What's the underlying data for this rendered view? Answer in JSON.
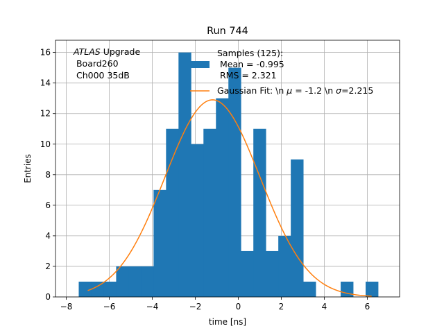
{
  "chart_data": {
    "type": "bar",
    "title": "Run 744",
    "xlabel": "time [ns]",
    "ylabel": "Entries",
    "xlim": [
      -8.5,
      7.5
    ],
    "ylim": [
      0,
      16.8
    ],
    "grid": true,
    "x_ticks": [
      -8,
      -6,
      -4,
      -2,
      0,
      2,
      4,
      6
    ],
    "x_tick_labels": [
      "−8",
      "−6",
      "−4",
      "−2",
      "0",
      "2",
      "4",
      "6"
    ],
    "y_ticks": [
      0,
      2,
      4,
      6,
      8,
      10,
      12,
      14,
      16
    ],
    "y_tick_labels": [
      "0",
      "2",
      "4",
      "6",
      "8",
      "10",
      "12",
      "14",
      "16"
    ],
    "annotation": {
      "italic": "ATLAS",
      "rest": " Upgrade",
      "lines": [
        " Board260",
        " Ch000 35dB"
      ]
    },
    "histogram": {
      "color": "#1f77b4",
      "bins": [
        {
          "left": -7.42,
          "right": -6.84,
          "count": 1
        },
        {
          "left": -6.84,
          "right": -6.26,
          "count": 1
        },
        {
          "left": -6.26,
          "right": -5.68,
          "count": 1
        },
        {
          "left": -5.68,
          "right": -5.1,
          "count": 2
        },
        {
          "left": -5.1,
          "right": -4.52,
          "count": 2
        },
        {
          "left": -4.52,
          "right": -3.94,
          "count": 2
        },
        {
          "left": -3.94,
          "right": -3.36,
          "count": 7
        },
        {
          "left": -3.36,
          "right": -2.78,
          "count": 11
        },
        {
          "left": -2.78,
          "right": -2.2,
          "count": 16
        },
        {
          "left": -2.2,
          "right": -1.62,
          "count": 10
        },
        {
          "left": -1.62,
          "right": -1.04,
          "count": 11
        },
        {
          "left": -1.04,
          "right": -0.46,
          "count": 13
        },
        {
          "left": -0.46,
          "right": 0.12,
          "count": 15
        },
        {
          "left": 0.12,
          "right": 0.7,
          "count": 3
        },
        {
          "left": 0.7,
          "right": 1.28,
          "count": 11
        },
        {
          "left": 1.28,
          "right": 1.86,
          "count": 3
        },
        {
          "left": 1.86,
          "right": 2.44,
          "count": 4
        },
        {
          "left": 2.44,
          "right": 3.02,
          "count": 9
        },
        {
          "left": 3.02,
          "right": 3.6,
          "count": 1
        },
        {
          "left": 3.6,
          "right": 4.18,
          "count": 0
        },
        {
          "left": 4.18,
          "right": 4.76,
          "count": 0
        },
        {
          "left": 4.76,
          "right": 5.34,
          "count": 1
        },
        {
          "left": 5.34,
          "right": 5.92,
          "count": 0
        },
        {
          "left": 5.92,
          "right": 6.5,
          "count": 1
        }
      ]
    },
    "fit": {
      "color": "#ff7f0e",
      "mu": -1.2,
      "sigma": 2.215,
      "amplitude": 12.9,
      "x_range": [
        -7.0,
        6.2
      ]
    },
    "legend": {
      "entries": [
        {
          "kind": "bar",
          "lines": [
            "Samples (125):",
            " Mean = -0.995",
            " RMS = 2.321"
          ]
        },
        {
          "kind": "line",
          "prefix": "Gaussian Fit: \\n ",
          "mu_sym": "μ",
          "middle": " = -1.2 \\n ",
          "sigma_sym": "σ",
          "suffix": "=2.215"
        }
      ]
    }
  }
}
